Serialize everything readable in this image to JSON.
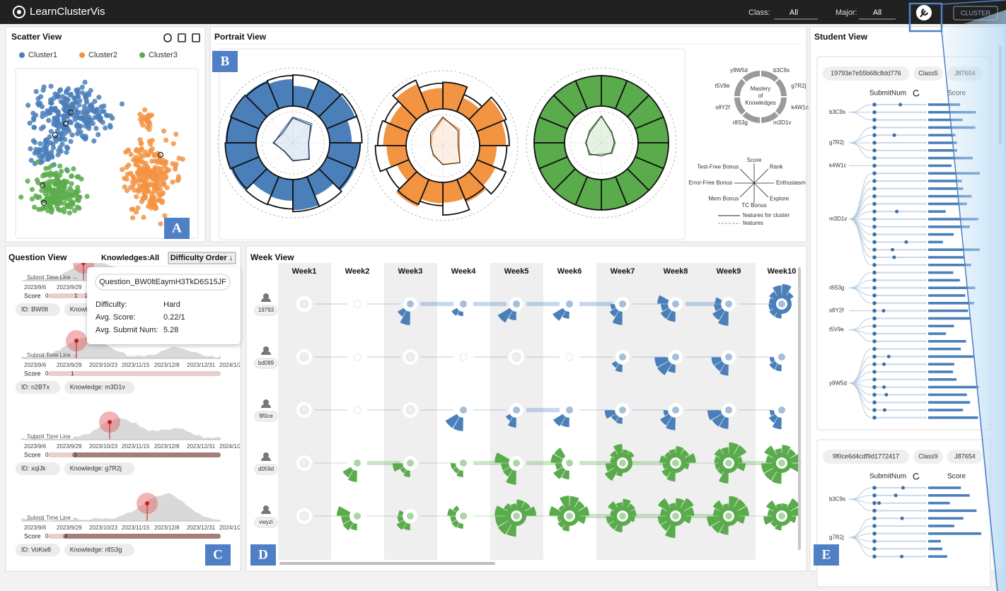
{
  "header": {
    "title": "LearnClusterVis",
    "class_label": "Class:",
    "class_value": "All",
    "major_label": "Major:",
    "major_value": "All",
    "button": "CLUSTER"
  },
  "scatter_view": {
    "title": "Scatter View",
    "badge": "A",
    "legend": [
      {
        "name": "Cluster1",
        "color": "#4a7fba"
      },
      {
        "name": "Cluster2",
        "color": "#f39443"
      },
      {
        "name": "Cluster3",
        "color": "#5aab4c"
      }
    ]
  },
  "portrait_view": {
    "title": "Portrait View",
    "badge": "B",
    "mastery_center": [
      "Mastery",
      "of",
      "Knowledges"
    ],
    "knowledges": [
      "b3C9s",
      "g7R2j",
      "k4W1c",
      "m3D1v",
      "r8S3g",
      "s8Y2f",
      "t5V9e",
      "y9W5d"
    ],
    "features": [
      "Score",
      "Rank",
      "Enthusiasm",
      "Explore",
      "TC Bonus",
      "Mem Bonus",
      "Error-Free Bonus",
      "Test-Free Bonus"
    ],
    "legend_solid": "features for cluster",
    "legend_dashed": "features"
  },
  "question_view": {
    "title": "Question View",
    "badge": "C",
    "knowledges_label": "Knowledges:",
    "knowledges_value": "All",
    "order_button": "Difficulty Order ↓",
    "timeline_label": "Submit Time Line →",
    "dates": [
      "2023/9/6",
      "2023/9/29",
      "2023/10/23",
      "2023/11/15",
      "2023/12/8",
      "2023/12/31",
      "2024/1/2"
    ],
    "score_label": "Score",
    "cards": [
      {
        "score_ticks": [
          0,
          1,
          2
        ],
        "id": "ID: BW0lt",
        "knowledge": "Knowledge"
      },
      {
        "score_ticks": [
          0,
          1
        ],
        "id": "ID: n2BTx",
        "knowledge": "Knowledge: m3D1v"
      },
      {
        "score_ticks": [
          0,
          3
        ],
        "id": "ID: xqlJk",
        "knowledge": "Knowledge: g7R2j"
      },
      {
        "score_ticks": [
          0,
          4
        ],
        "id": "ID: VoKw8",
        "knowledge": "Knowledge: r8S3g"
      }
    ],
    "tooltip": {
      "question": "Question_BW0ltEaymH3TkD6S15JF",
      "rows": [
        [
          "Difficulty:",
          "Hard"
        ],
        [
          "Avg. Score:",
          "0.22/1"
        ],
        [
          "Avg. Submit Num:",
          "5.28"
        ]
      ]
    }
  },
  "week_view": {
    "title": "Week View",
    "badge": "D",
    "weeks": [
      "Week1",
      "Week2",
      "Week3",
      "Week4",
      "Week5",
      "Week6",
      "Week7",
      "Week8",
      "Week9",
      "Week10"
    ],
    "students": [
      {
        "name": "19793",
        "color": "#4a7fba",
        "levels": [
          0,
          0,
          2,
          2,
          2,
          2,
          3,
          4,
          4,
          8
        ]
      },
      {
        "name": "bd099",
        "color": "#4a7fba",
        "levels": [
          0,
          0,
          0,
          0,
          0,
          0,
          2,
          3,
          3,
          3
        ]
      },
      {
        "name": "9f0ce",
        "color": "#4a7fba",
        "levels": [
          0,
          0,
          0,
          2,
          2,
          2,
          3,
          3,
          3,
          3
        ]
      },
      {
        "name": "d059d",
        "color": "#5aab4c",
        "levels": [
          0,
          2,
          3,
          3,
          4,
          5,
          8,
          10,
          10,
          10
        ]
      },
      {
        "name": "vwyzi",
        "color": "#5aab4c",
        "levels": [
          0,
          4,
          4,
          5,
          9,
          10,
          10,
          10,
          10,
          10
        ]
      }
    ]
  },
  "student_view": {
    "title": "Student View",
    "badge": "E",
    "cards": [
      {
        "id": "19793e7e55b68c8dd776",
        "class": "Class5",
        "major": "J87654",
        "submit_label": "SubmitNum",
        "score_label": "Score",
        "knowledges": [
          {
            "name": "b3C9s",
            "questions": 3
          },
          {
            "name": "g7R2j",
            "questions": 5
          },
          {
            "name": "k4W1c",
            "questions": 1
          },
          {
            "name": "m3D1v",
            "questions": 13
          },
          {
            "name": "r8S3g",
            "questions": 5
          },
          {
            "name": "s8Y2f",
            "questions": 1
          },
          {
            "name": "t5V9e",
            "questions": 4
          },
          {
            "name": "y9W5d",
            "questions": 10
          }
        ]
      },
      {
        "id": "9f0ce6d4cdf9d1772417",
        "class": "Class9",
        "major": "J87654",
        "submit_label": "SubmitNum",
        "score_label": "Score",
        "knowledges": [
          {
            "name": "b3C9s",
            "questions": 4
          },
          {
            "name": "g7R2j",
            "questions": 6
          }
        ]
      }
    ]
  }
}
